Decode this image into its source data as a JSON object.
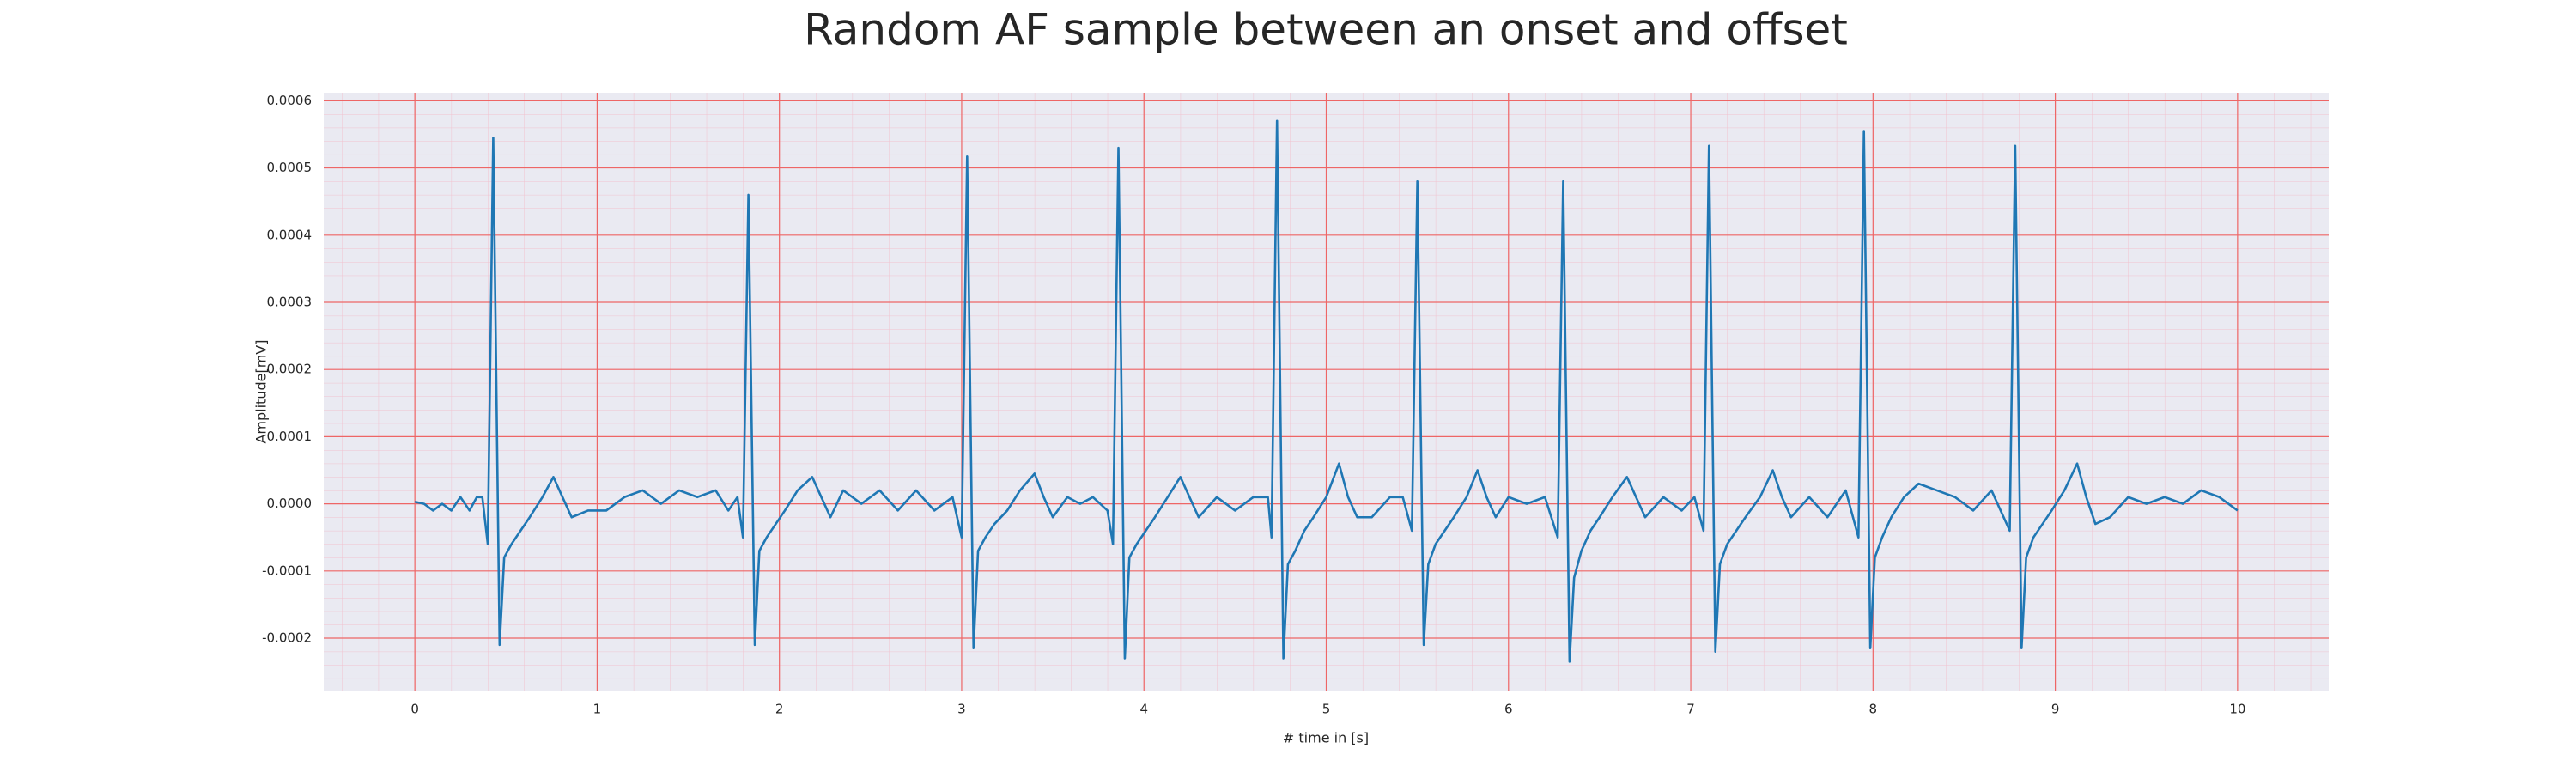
{
  "chart_data": {
    "type": "line",
    "title": "Random AF sample between an onset and offset",
    "x_label": "# time in [s]",
    "y_label": "Amplitude[mV]",
    "color": "#1f77b4",
    "grid": true,
    "minor_grid": true,
    "xlim": [
      -0.5,
      10.5
    ],
    "ylim": [
      -0.000278,
      0.000612
    ],
    "xticks": [
      0,
      1,
      2,
      3,
      4,
      5,
      6,
      7,
      8,
      9,
      10
    ],
    "yticks": [
      -0.0002,
      -0.0001,
      {
        "value": 0,
        "label": "0.0000"
      },
      0.0001,
      0.0002,
      0.0003,
      0.0004,
      0.0005,
      0.0006
    ],
    "x": [
      0,
      0.05,
      0.1,
      0.15,
      0.2,
      0.25,
      0.3,
      0.34,
      0.37,
      0.4,
      0.43,
      0.465,
      0.49,
      0.53,
      0.58,
      0.63,
      0.7,
      0.76,
      0.81,
      0.86,
      0.95,
      1.05,
      1.15,
      1.25,
      1.35,
      1.45,
      1.55,
      1.65,
      1.72,
      1.77,
      1.8,
      1.83,
      1.865,
      1.89,
      1.93,
      1.98,
      2.03,
      2.1,
      2.18,
      2.23,
      2.28,
      2.35,
      2.45,
      2.55,
      2.65,
      2.75,
      2.85,
      2.95,
      3.0,
      3.03,
      3.065,
      3.09,
      3.13,
      3.18,
      3.25,
      3.32,
      3.4,
      3.45,
      3.5,
      3.58,
      3.65,
      3.72,
      3.8,
      3.83,
      3.86,
      3.895,
      3.92,
      3.96,
      4.01,
      4.06,
      4.13,
      4.2,
      4.25,
      4.3,
      4.4,
      4.5,
      4.6,
      4.68,
      4.7,
      4.73,
      4.765,
      4.79,
      4.83,
      4.88,
      4.93,
      5.0,
      5.07,
      5.12,
      5.17,
      5.25,
      5.35,
      5.42,
      5.47,
      5.5,
      5.535,
      5.56,
      5.6,
      5.65,
      5.7,
      5.77,
      5.83,
      5.88,
      5.93,
      6.0,
      6.1,
      6.2,
      6.27,
      6.3,
      6.335,
      6.36,
      6.4,
      6.45,
      6.5,
      6.57,
      6.65,
      6.7,
      6.75,
      6.85,
      6.95,
      7.02,
      7.07,
      7.1,
      7.135,
      7.16,
      7.2,
      7.25,
      7.3,
      7.38,
      7.45,
      7.5,
      7.55,
      7.65,
      7.75,
      7.85,
      7.92,
      7.95,
      7.985,
      8.01,
      8.05,
      8.1,
      8.17,
      8.25,
      8.35,
      8.45,
      8.55,
      8.65,
      8.75,
      8.78,
      8.815,
      8.84,
      8.88,
      8.93,
      8.98,
      9.05,
      9.12,
      9.17,
      9.22,
      9.3,
      9.4,
      9.5,
      9.6,
      9.7,
      9.8,
      9.9,
      10.0
    ],
    "values": [
      3e-06,
      0,
      -1e-05,
      0,
      -1e-05,
      1e-05,
      -1e-05,
      1e-05,
      1e-05,
      -6e-05,
      0.000545,
      -0.00021,
      -8e-05,
      -6e-05,
      -4e-05,
      -2e-05,
      1e-05,
      4e-05,
      1e-05,
      -2e-05,
      -1e-05,
      -1e-05,
      1e-05,
      2e-05,
      0,
      2e-05,
      1e-05,
      2e-05,
      -1e-05,
      1e-05,
      -5e-05,
      0.00046,
      -0.00021,
      -7e-05,
      -5e-05,
      -3e-05,
      -1e-05,
      2e-05,
      4e-05,
      1e-05,
      -2e-05,
      2e-05,
      0,
      2e-05,
      -1e-05,
      2e-05,
      -1e-05,
      1e-05,
      -5e-05,
      0.000517,
      -0.000215,
      -7e-05,
      -5e-05,
      -3e-05,
      -1e-05,
      2e-05,
      4.5e-05,
      1e-05,
      -2e-05,
      1e-05,
      0,
      1e-05,
      -1e-05,
      -6e-05,
      0.00053,
      -0.00023,
      -8e-05,
      -6e-05,
      -4e-05,
      -2e-05,
      1e-05,
      4e-05,
      1e-05,
      -2e-05,
      1e-05,
      -1e-05,
      1e-05,
      1e-05,
      -5e-05,
      0.00057,
      -0.00023,
      -9e-05,
      -7e-05,
      -4e-05,
      -2e-05,
      1e-05,
      6e-05,
      1e-05,
      -2e-05,
      -2e-05,
      1e-05,
      1e-05,
      -4e-05,
      0.00048,
      -0.00021,
      -9e-05,
      -6e-05,
      -4e-05,
      -2e-05,
      1e-05,
      5e-05,
      1e-05,
      -2e-05,
      1e-05,
      0,
      1e-05,
      -5e-05,
      0.00048,
      -0.000235,
      -0.00011,
      -7e-05,
      -4e-05,
      -2e-05,
      1e-05,
      4e-05,
      1e-05,
      -2e-05,
      1e-05,
      -1e-05,
      1e-05,
      -4e-05,
      0.000533,
      -0.00022,
      -9e-05,
      -6e-05,
      -4e-05,
      -2e-05,
      1e-05,
      5e-05,
      1e-05,
      -2e-05,
      1e-05,
      -2e-05,
      2e-05,
      -5e-05,
      0.000555,
      -0.000215,
      -8e-05,
      -5e-05,
      -2e-05,
      1e-05,
      3e-05,
      2e-05,
      1e-05,
      -1e-05,
      2e-05,
      -4e-05,
      0.000533,
      -0.000215,
      -8e-05,
      -5e-05,
      -3e-05,
      -1e-05,
      2e-05,
      6e-05,
      1e-05,
      -3e-05,
      -2e-05,
      1e-05,
      0,
      1e-05,
      0,
      2e-05,
      1e-05,
      -1e-05
    ]
  }
}
